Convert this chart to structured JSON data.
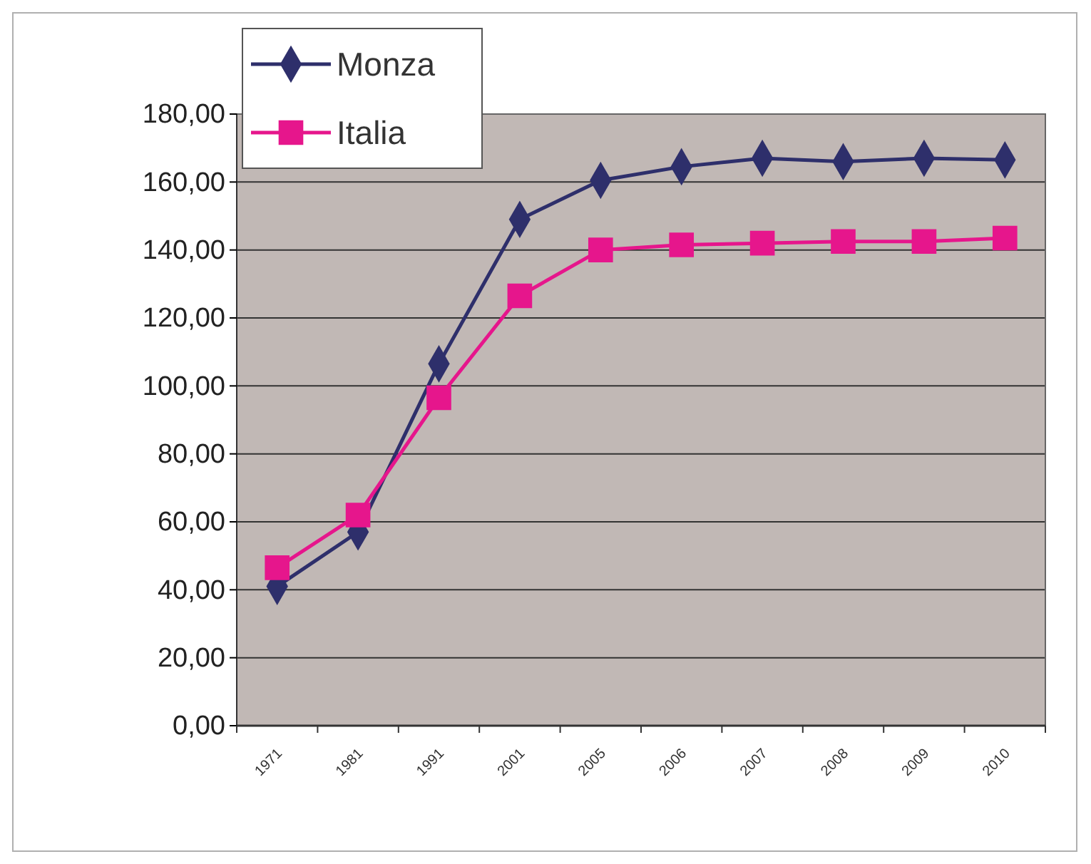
{
  "chart_data": {
    "type": "line",
    "categories": [
      "1971",
      "1981",
      "1991",
      "2001",
      "2005",
      "2006",
      "2007",
      "2008",
      "2009",
      "2010"
    ],
    "series": [
      {
        "name": "Monza",
        "color": "#2e2f6b",
        "marker": "diamond",
        "values": [
          41,
          57,
          106.5,
          149,
          160.5,
          164.5,
          167,
          166,
          167,
          166.5
        ]
      },
      {
        "name": "Italia",
        "color": "#e6168c",
        "marker": "square",
        "values": [
          46.5,
          62,
          96.5,
          126.5,
          140,
          141.5,
          142,
          142.5,
          142.5,
          143.5
        ]
      }
    ],
    "ylim": [
      0,
      180
    ],
    "yticks": [
      {
        "value": 0,
        "label": "0,00"
      },
      {
        "value": 20,
        "label": "20,00"
      },
      {
        "value": 40,
        "label": "40,00"
      },
      {
        "value": 60,
        "label": "60,00"
      },
      {
        "value": 80,
        "label": "80,00"
      },
      {
        "value": 100,
        "label": "100,00"
      },
      {
        "value": 120,
        "label": "120,00"
      },
      {
        "value": 140,
        "label": "140,00"
      },
      {
        "value": 160,
        "label": "160,00"
      },
      {
        "value": 180,
        "label": "180,00"
      }
    ],
    "grid": "y",
    "legend": "top left"
  }
}
